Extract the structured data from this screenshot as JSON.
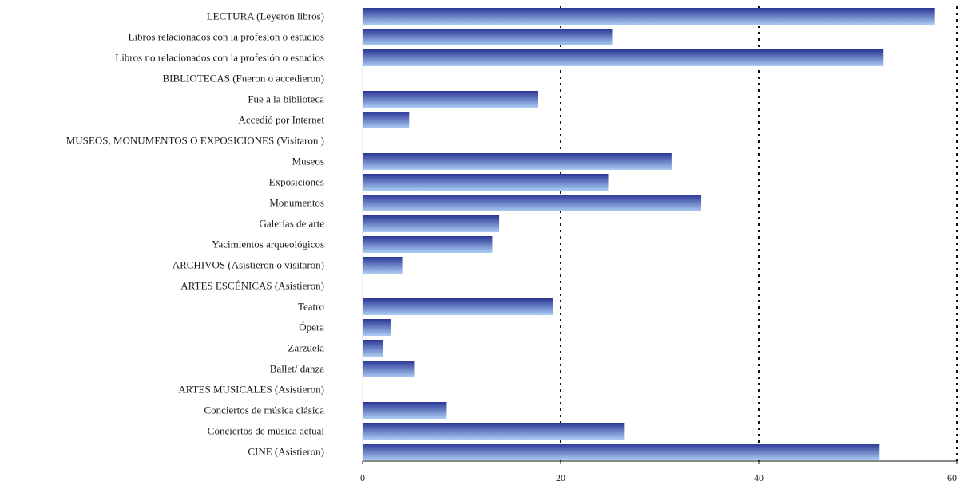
{
  "chart_data": {
    "type": "bar",
    "orientation": "horizontal",
    "title": "",
    "xlabel": "",
    "ylabel": "",
    "xlim": [
      0,
      60
    ],
    "x_ticks": [
      0,
      20,
      40,
      60
    ],
    "grid": "vertical dashed at 20, 40, 60",
    "legend": "none",
    "bar_color_start": "#2b3596",
    "bar_color_end": "#a9cdf2",
    "categories": [
      "LECTURA (Leyeron libros)",
      "Libros relacionados con la profesión o estudios",
      "Libros no relacionados con la profesión o estudios",
      "BIBLIOTECAS (Fueron o accedieron)",
      "Fue a la biblioteca",
      "Accedió por Internet",
      "MUSEOS, MONUMENTOS O EXPOSICIONES (Visitaron )",
      "Museos",
      "Exposiciones",
      "Monumentos",
      "Galerías de arte",
      "Yacimientos arqueológicos",
      "ARCHIVOS (Asistieron o visitaron)",
      "ARTES ESCÉNICAS  (Asistieron)",
      "Teatro",
      "Ópera",
      "Zarzuela",
      "Ballet/ danza",
      "ARTES MUSICALES  (Asistieron)",
      "Conciertos de música clásica",
      "Conciertos de música actual",
      "CINE  (Asistieron)"
    ],
    "values": [
      57.8,
      25.2,
      52.6,
      0,
      17.7,
      4.7,
      0,
      31.2,
      24.8,
      34.2,
      13.8,
      13.1,
      4.0,
      0,
      19.2,
      2.9,
      2.1,
      5.2,
      0,
      8.5,
      26.4,
      52.2
    ]
  }
}
